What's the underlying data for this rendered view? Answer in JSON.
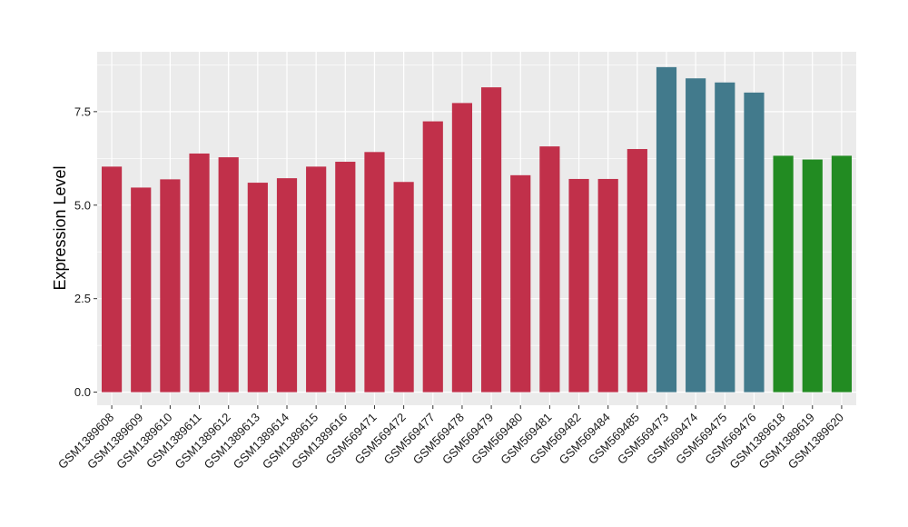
{
  "chart_data": {
    "type": "bar",
    "title": "",
    "xlabel": "",
    "ylabel": "Expression Level",
    "ylim": [
      -0.35,
      9.1
    ],
    "yticks": [
      0.0,
      2.5,
      5.0,
      7.5
    ],
    "ytick_labels": [
      "0.0",
      "2.5",
      "5.0",
      "7.5"
    ],
    "grid": true,
    "panel_background": "#ebebeb",
    "grid_color": "#ffffff",
    "categories": [
      "GSM1389608",
      "GSM1389609",
      "GSM1389610",
      "GSM1389611",
      "GSM1389612",
      "GSM1389613",
      "GSM1389614",
      "GSM1389615",
      "GSM1389616",
      "GSM569471",
      "GSM569472",
      "GSM569477",
      "GSM569478",
      "GSM569479",
      "GSM569480",
      "GSM569481",
      "GSM569482",
      "GSM569484",
      "GSM569485",
      "GSM569473",
      "GSM569474",
      "GSM569475",
      "GSM569476",
      "GSM1389618",
      "GSM1389619",
      "GSM1389620"
    ],
    "values": [
      6.03,
      5.47,
      5.69,
      6.38,
      6.28,
      5.6,
      5.72,
      6.03,
      6.16,
      6.42,
      5.62,
      7.24,
      7.73,
      8.15,
      5.8,
      6.57,
      5.7,
      5.7,
      6.5,
      8.69,
      8.39,
      8.28,
      8.01,
      6.32,
      6.22,
      6.32
    ],
    "colors": [
      "#c1304a",
      "#c1304a",
      "#c1304a",
      "#c1304a",
      "#c1304a",
      "#c1304a",
      "#c1304a",
      "#c1304a",
      "#c1304a",
      "#c1304a",
      "#c1304a",
      "#c1304a",
      "#c1304a",
      "#c1304a",
      "#c1304a",
      "#c1304a",
      "#c1304a",
      "#c1304a",
      "#c1304a",
      "#427a8c",
      "#427a8c",
      "#427a8c",
      "#427a8c",
      "#228b22",
      "#228b22",
      "#228b22"
    ]
  }
}
